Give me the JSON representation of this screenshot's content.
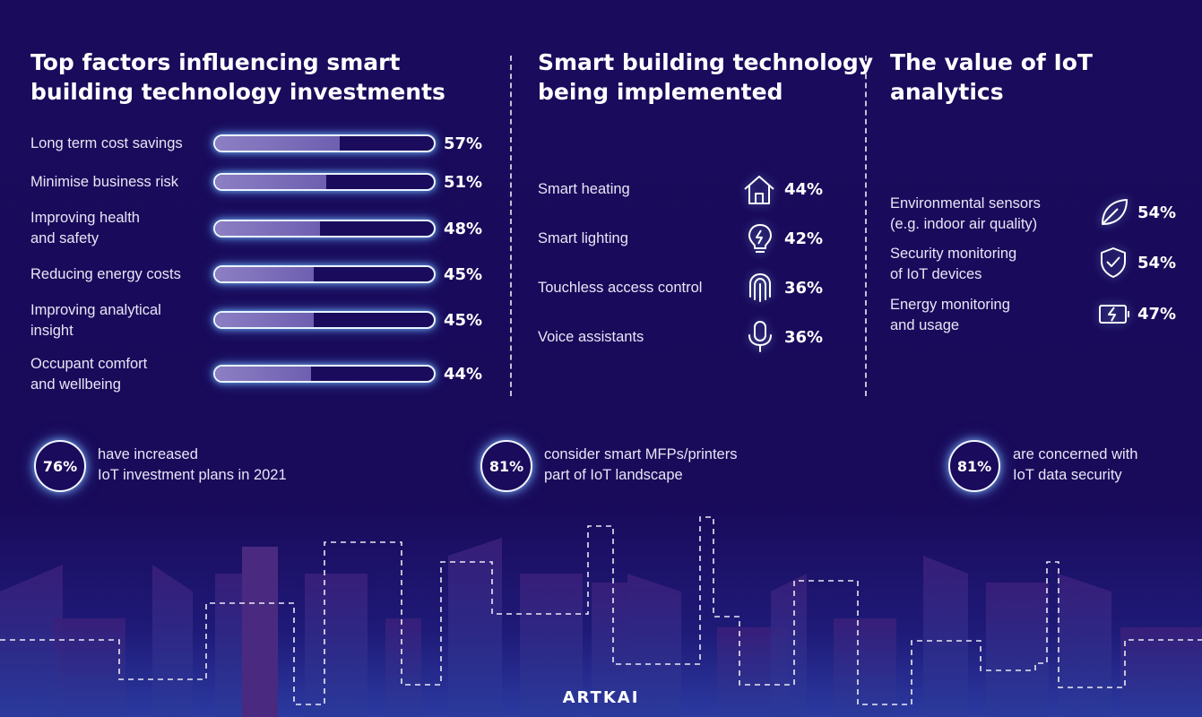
{
  "sections": {
    "factors_title": "Top factors influencing smart\nbuilding technology investments",
    "tech_title": "Smart building technology\nbeing implemented",
    "iot_title": "The value of IoT\nanalytics"
  },
  "chart_data": [
    {
      "type": "bar",
      "title": "Top factors influencing smart building technology investments",
      "categories": [
        "Long term cost savings",
        "Minimise business risk",
        "Improving health\nand safety",
        "Reducing energy costs",
        "Improving analytical\ninsight",
        "Occupant comfort\nand wellbeing"
      ],
      "values": [
        57,
        51,
        48,
        45,
        45,
        44
      ],
      "labels": [
        "57%",
        "51%",
        "48%",
        "45%",
        "45%",
        "44%"
      ],
      "ylim": [
        0,
        100
      ]
    },
    {
      "type": "table",
      "title": "Smart building technology being implemented",
      "categories": [
        "Smart heating",
        "Smart lighting",
        "Touchless access control",
        "Voice assistants"
      ],
      "values": [
        44,
        42,
        36,
        36
      ],
      "labels": [
        "44%",
        "42%",
        "36%",
        "36%"
      ],
      "icons": [
        "house-icon",
        "lightbulb-icon",
        "fingerprint-icon",
        "microphone-icon"
      ]
    },
    {
      "type": "table",
      "title": "The value of IoT analytics",
      "categories": [
        "Environmental sensors\n(e.g. indoor air quality)",
        "Security monitoring\nof IoT devices",
        "Energy monitoring\nand usage"
      ],
      "values": [
        54,
        54,
        47
      ],
      "labels": [
        "54%",
        "54%",
        "47%"
      ],
      "icons": [
        "leaf-icon",
        "shield-check-icon",
        "battery-charging-icon"
      ]
    }
  ],
  "stats": [
    {
      "value": "76%",
      "text": "have increased\nIoT investment plans in 2021"
    },
    {
      "value": "81%",
      "text": "consider smart MFPs/printers\npart of IoT landscape"
    },
    {
      "value": "81%",
      "text": "are concerned with\nIoT data security"
    }
  ],
  "brand": "ARTKAI",
  "colors": {
    "background": "#1a0b5c",
    "bar_fill": "#8d7fc4",
    "glow": "#78beff"
  }
}
